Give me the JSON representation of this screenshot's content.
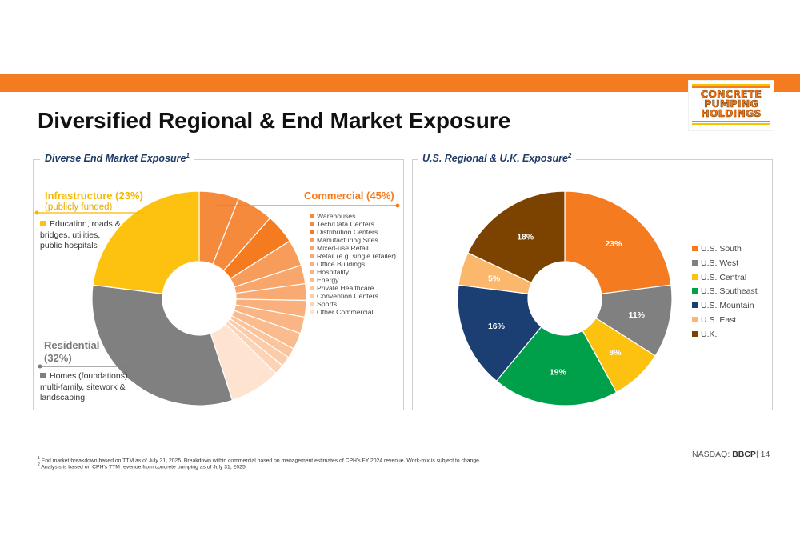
{
  "title": "Diversified Regional & End Market Exposure",
  "logo": {
    "lines": [
      "CONCRETE",
      "PUMPING",
      "HOLDINGS"
    ]
  },
  "left_panel": {
    "title": "Diverse End Market Exposure",
    "title_sup": "1",
    "infrastructure": {
      "label": "Infrastructure (23%)",
      "sub": "(publicly funded)",
      "desc": "Education, roads & bridges, utilities, public hospitals"
    },
    "commercial": {
      "label": "Commercial  (45%)"
    },
    "residential": {
      "label": "Residential",
      "pct": "(32%)",
      "desc": "Homes (foundations), multi-family, sitework & landscaping"
    }
  },
  "right_panel": {
    "title": "U.S. Regional & U.K. Exposure",
    "title_sup": "2"
  },
  "colors": {
    "accent": "#f47b20",
    "infrastructure": "#fdc20f",
    "residential": "#808080",
    "title_blue": "#1f3b66"
  },
  "chart_data": [
    {
      "type": "pie",
      "title": "",
      "subtype": "donut",
      "series": [
        {
          "name": "Infrastructure",
          "value": 23,
          "color": "#fdc20f"
        },
        {
          "name": "Residential",
          "value": 32,
          "color": "#808080"
        },
        {
          "name": "Commercial",
          "value": 45,
          "color": "#f47b20"
        }
      ],
      "commercial_breakdown": [
        {
          "name": "Warehouses",
          "value": 6.0,
          "color": "#f58a3d"
        },
        {
          "name": "Tech/Data Centers",
          "value": 5.5,
          "color": "#f58a3d"
        },
        {
          "name": "Distribution Centers",
          "value": 4.5,
          "color": "#f47b20"
        },
        {
          "name": "Manufacturing Sites",
          "value": 4.0,
          "color": "#f79c5a"
        },
        {
          "name": "Mixed-use Retail",
          "value": 2.8,
          "color": "#f8a66b"
        },
        {
          "name": "Retail (e.g. single retailer)",
          "value": 2.5,
          "color": "#f8aa72"
        },
        {
          "name": "Office Buildings",
          "value": 2.5,
          "color": "#f9b07c"
        },
        {
          "name": "Hospitality",
          "value": 2.5,
          "color": "#f9b584"
        },
        {
          "name": "Energy",
          "value": 2.5,
          "color": "#fabc8f"
        },
        {
          "name": "Private Healthcare",
          "value": 1.5,
          "color": "#fbc49d"
        },
        {
          "name": "Convention Centers",
          "value": 1.5,
          "color": "#fccba8"
        },
        {
          "name": "Sports",
          "value": 1.5,
          "color": "#fcd3b5"
        },
        {
          "name": "Other Commercial",
          "value": 7.7,
          "color": "#fde3d0"
        }
      ]
    },
    {
      "type": "pie",
      "title": "",
      "subtype": "donut",
      "series": [
        {
          "name": "U.S. South",
          "value": 23,
          "label": "23%",
          "color": "#f47b20"
        },
        {
          "name": "U.S. West",
          "value": 11,
          "label": "11%",
          "color": "#808080"
        },
        {
          "name": "U.S. Central",
          "value": 8,
          "label": "8%",
          "color": "#fdc20f"
        },
        {
          "name": "U.S. Southeast",
          "value": 19,
          "label": "19%",
          "color": "#00a04b"
        },
        {
          "name": "U.S. Mountain",
          "value": 16,
          "label": "16%",
          "color": "#1c3f73"
        },
        {
          "name": "U.S. East",
          "value": 5,
          "label": "5%",
          "color": "#fbb86c"
        },
        {
          "name": "U.K.",
          "value": 18,
          "label": "18%",
          "color": "#7b4200"
        }
      ]
    }
  ],
  "footnotes": [
    {
      "sup": "1",
      "text": "End market breakdown based on TTM as of July 31, 2025. Breakdown within commercial based on management estimates of CPH's FY 2024 revenue. Work-mix is subject to change."
    },
    {
      "sup": "2",
      "text": "Analysis is based on CPH's TTM revenue from concrete pumping as of July 31, 2025."
    }
  ],
  "page_info": {
    "exchange": "NASDAQ:",
    "ticker": "BBCP",
    "page": "| 14"
  }
}
